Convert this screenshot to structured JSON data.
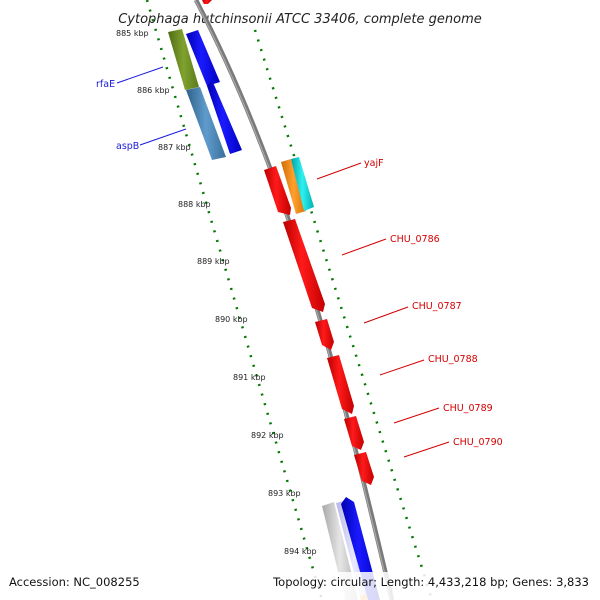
{
  "title": "Cytophaga hutchinsonii ATCC 33406, complete genome",
  "footer": {
    "accession": "Accession: NC_008255",
    "topology": "Topology: circular; Length: 4,433,218 bp; Genes: 3,833"
  },
  "ticks": [
    {
      "label": "885 kbp"
    },
    {
      "label": "886 kbp"
    },
    {
      "label": "887 kbp"
    },
    {
      "label": "888 kbp"
    },
    {
      "label": "889 kbp"
    },
    {
      "label": "890 kbp"
    },
    {
      "label": "891 kbp"
    },
    {
      "label": "892 kbp"
    },
    {
      "label": "893 kbp"
    },
    {
      "label": "894 kbp"
    }
  ],
  "left_labels": [
    {
      "text": "rfaE"
    },
    {
      "text": "aspB"
    }
  ],
  "right_labels": [
    {
      "text": "yajF"
    },
    {
      "text": "CHU_0786"
    },
    {
      "text": "CHU_0787"
    },
    {
      "text": "CHU_0788"
    },
    {
      "text": "CHU_0789"
    },
    {
      "text": "CHU_0790"
    }
  ],
  "colors": {
    "forward_gene": "#0000ee",
    "reverse_gene": "#ee0000",
    "cog_green": "#6b8e23",
    "cog_steelblue": "#4682b4",
    "cog_orange": "#ff8c00",
    "cog_cyan": "#00ced1",
    "cog_gray": "#c8c8c8",
    "backbone": "#808080",
    "tick_green": "#007700"
  }
}
